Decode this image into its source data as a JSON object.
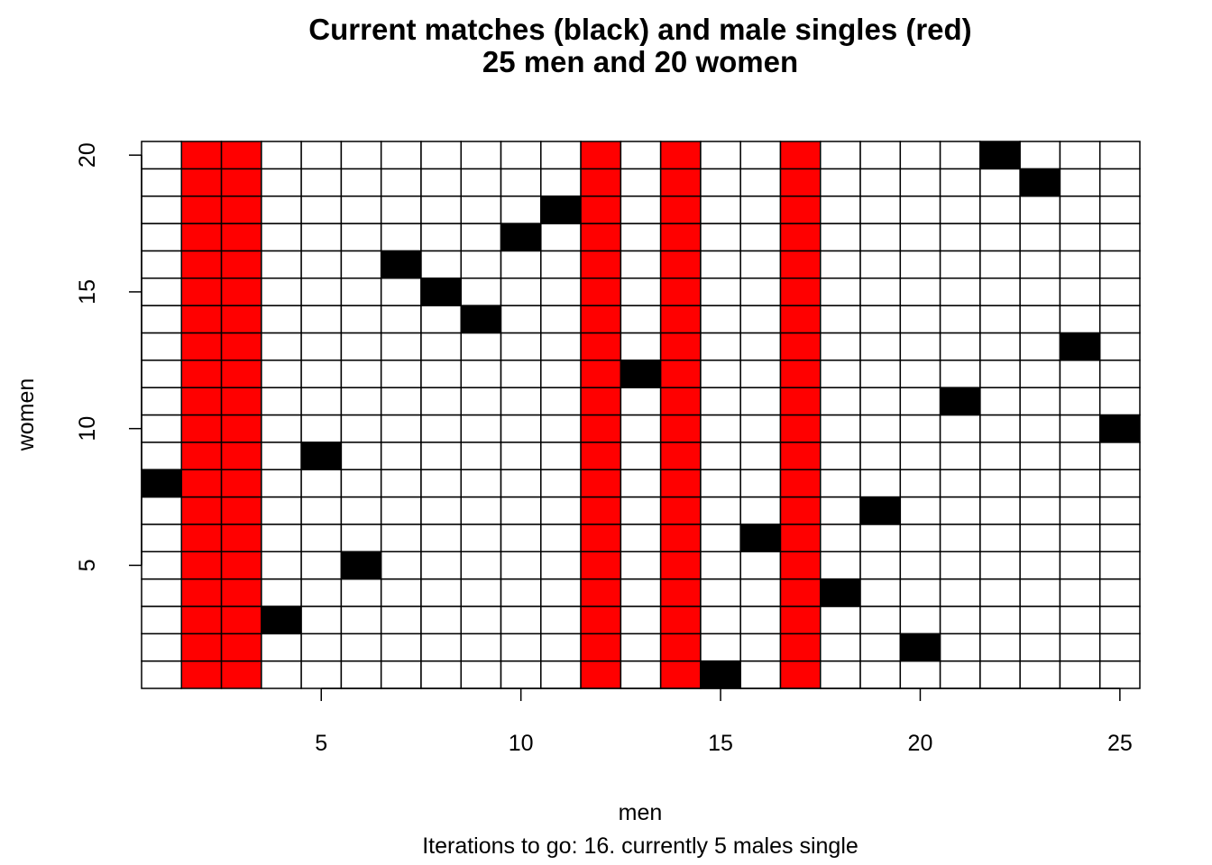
{
  "chart_data": {
    "type": "heatmap",
    "title": "Current matches (black) and male singles (red)",
    "subtitle": "25 men and 20 women",
    "xlabel": "men",
    "ylabel": "women",
    "caption": "Iterations to go: 16. currently 5 males single",
    "n_men": 25,
    "n_women": 20,
    "x_ticks": [
      5,
      10,
      15,
      20,
      25
    ],
    "y_ticks": [
      5,
      10,
      15,
      20
    ],
    "matches": [
      {
        "man": 1,
        "woman": 8
      },
      {
        "man": 4,
        "woman": 3
      },
      {
        "man": 5,
        "woman": 9
      },
      {
        "man": 6,
        "woman": 5
      },
      {
        "man": 7,
        "woman": 16
      },
      {
        "man": 8,
        "woman": 15
      },
      {
        "man": 9,
        "woman": 14
      },
      {
        "man": 10,
        "woman": 17
      },
      {
        "man": 11,
        "woman": 18
      },
      {
        "man": 13,
        "woman": 12
      },
      {
        "man": 15,
        "woman": 1
      },
      {
        "man": 16,
        "woman": 6
      },
      {
        "man": 18,
        "woman": 4
      },
      {
        "man": 19,
        "woman": 7
      },
      {
        "man": 20,
        "woman": 2
      },
      {
        "man": 21,
        "woman": 11
      },
      {
        "man": 22,
        "woman": 20
      },
      {
        "man": 23,
        "woman": 19
      },
      {
        "man": 24,
        "woman": 13
      },
      {
        "man": 25,
        "woman": 10
      }
    ],
    "single_men": [
      2,
      3,
      12,
      14,
      17
    ],
    "colors": {
      "match": "#000000",
      "single": "#ff0000",
      "empty": "#ffffff",
      "grid": "#000000"
    }
  }
}
